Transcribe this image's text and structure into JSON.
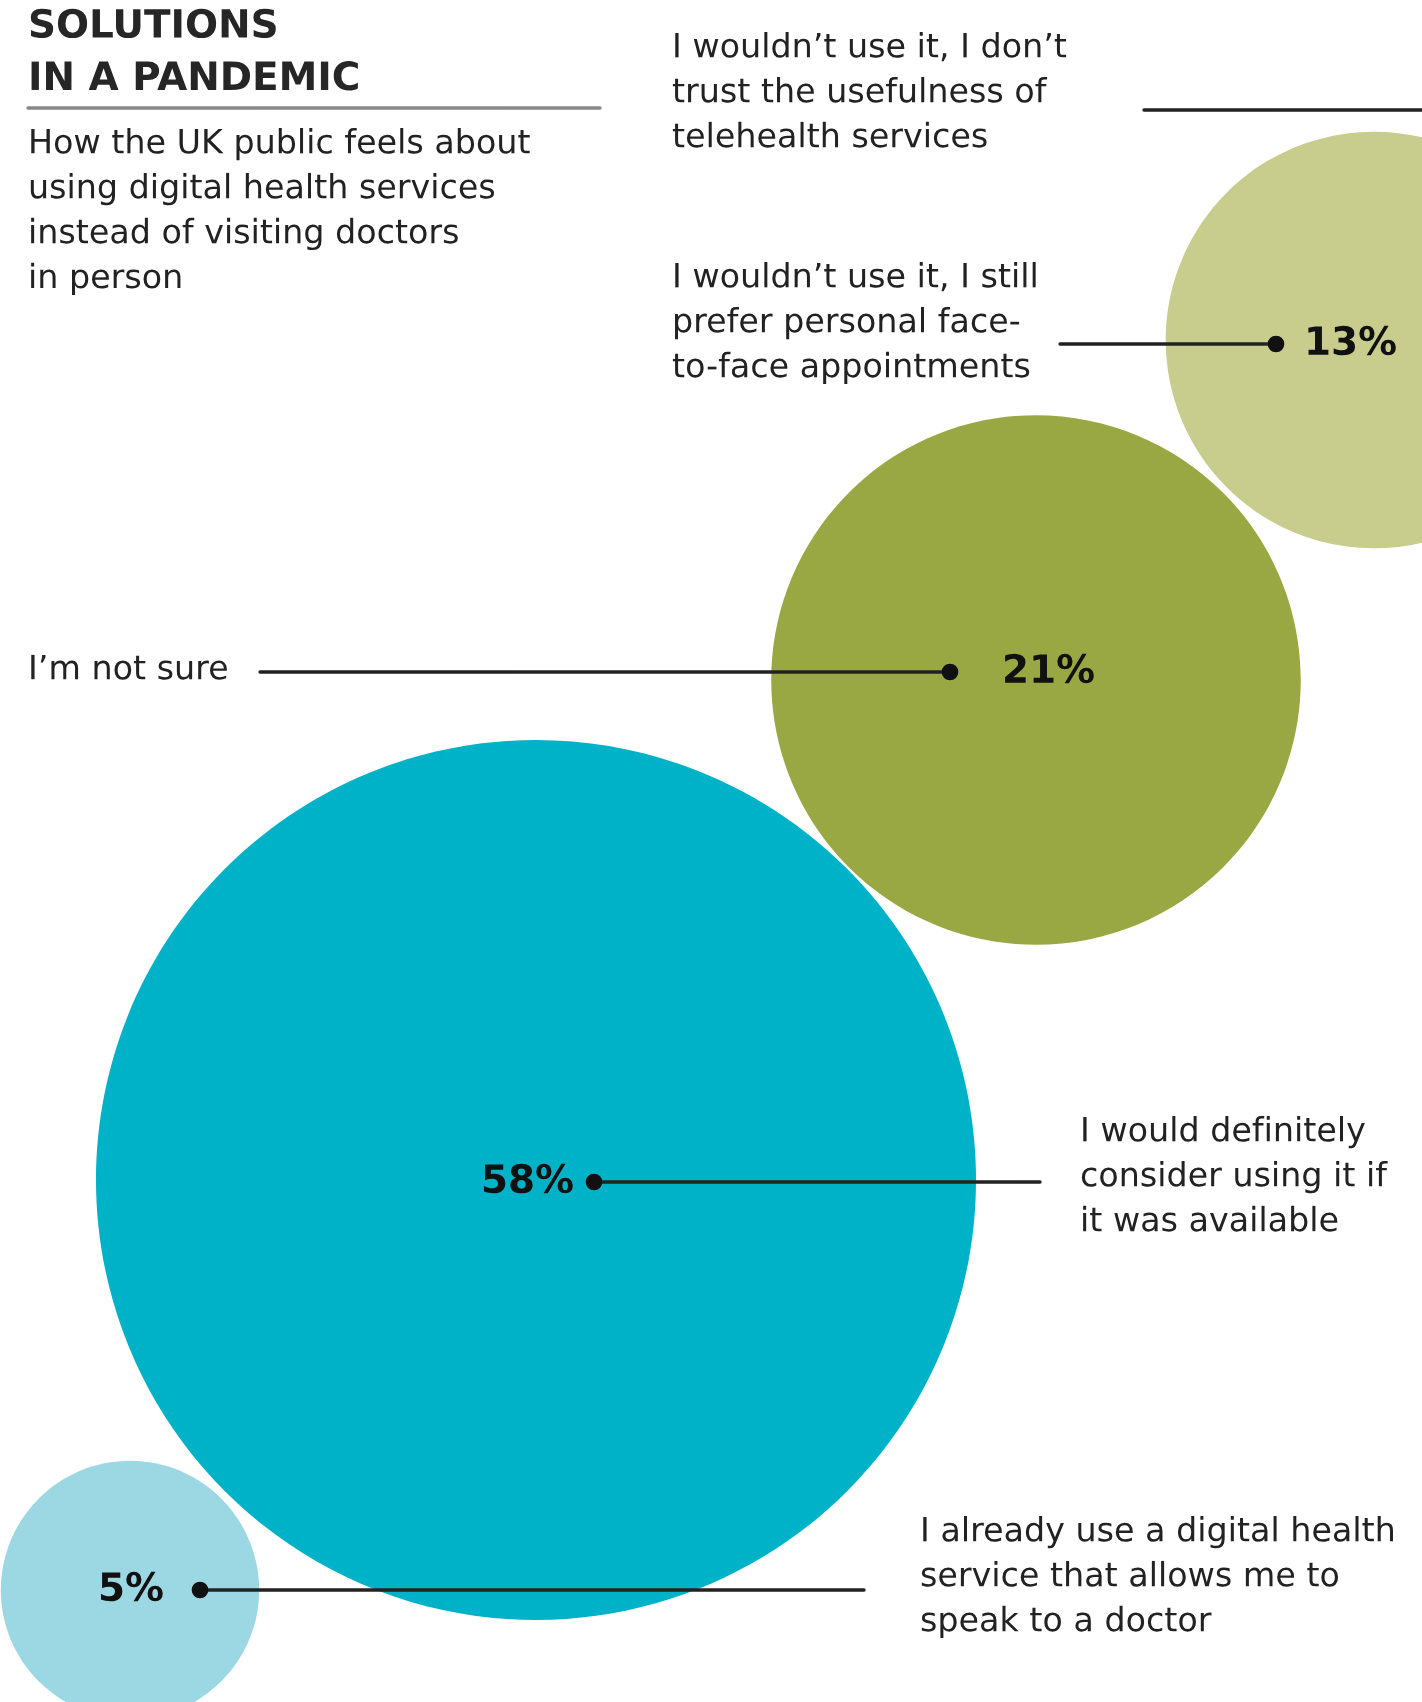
{
  "chart_data": {
    "type": "other",
    "title": "SOLUTIONS\nIN A PANDEMIC",
    "subtitle": "How the UK public feels about\nusing digital health services\ninstead of visiting doctors\nin person",
    "categories": [
      "I wouldn’t use it, I don’t\ntrust the usefulness of\ntelehealth services",
      "I wouldn’t use it, I still\nprefer personal face-\nto-face appointments",
      "I’m not sure",
      "I would definitely\nconsider using it if\nit was available",
      "I already use a digital health\nservice that allows me to\nspeak to a doctor"
    ],
    "values": [
      null,
      13,
      21,
      58,
      5
    ],
    "value_labels": [
      null,
      "13%",
      "21%",
      "58%",
      "5%"
    ],
    "colors": [
      "#c8cc8c",
      "#c8cc8c",
      "#9aa843",
      "#00b2c8",
      "#9bd8e4"
    ]
  }
}
